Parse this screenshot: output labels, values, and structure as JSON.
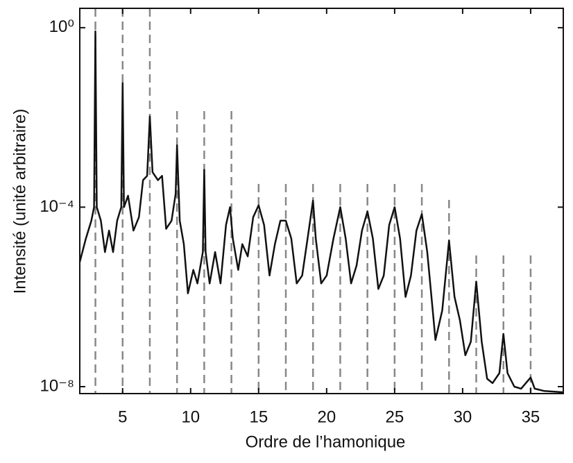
{
  "chart_data": {
    "type": "line",
    "xlabel": "Ordre de l’hamonique",
    "ylabel": "Intensité (unité arbitraire)",
    "yscale": "log",
    "xlim": [
      1.85,
      37.4
    ],
    "ylim": [
      7e-09,
      2.7
    ],
    "xticks": [
      5,
      10,
      15,
      20,
      25,
      30,
      35
    ],
    "yticks": [
      {
        "value": 1,
        "label": "10⁰"
      },
      {
        "value": 0.0001,
        "label": "10⁻⁴"
      },
      {
        "value": 1e-08,
        "label": "10⁻⁸"
      }
    ],
    "harmonic_lines": [
      3,
      5,
      7,
      9,
      11,
      13,
      15,
      17,
      19,
      21,
      23,
      25,
      27,
      29,
      31,
      33,
      35
    ],
    "harmonic_line_color": "#888888",
    "x": [
      1.85,
      2.3,
      2.7,
      2.9,
      3.0,
      3.1,
      3.4,
      3.7,
      4.0,
      4.3,
      4.6,
      4.9,
      5.0,
      5.1,
      5.4,
      5.8,
      6.2,
      6.5,
      6.8,
      7.0,
      7.2,
      7.6,
      7.9,
      8.2,
      8.6,
      8.9,
      9.0,
      9.2,
      9.5,
      9.8,
      10.2,
      10.5,
      10.9,
      11.0,
      11.1,
      11.4,
      11.8,
      12.2,
      12.6,
      12.9,
      13.1,
      13.5,
      13.8,
      14.2,
      14.6,
      15.0,
      15.4,
      15.8,
      16.2,
      16.6,
      17.0,
      17.4,
      17.8,
      18.2,
      18.6,
      19.0,
      19.2,
      19.6,
      20.0,
      20.5,
      21.0,
      21.4,
      21.8,
      22.2,
      22.6,
      23.0,
      23.4,
      23.8,
      24.2,
      24.6,
      25.0,
      25.4,
      25.8,
      26.2,
      26.6,
      27.0,
      27.4,
      27.8,
      28.0,
      28.5,
      29.0,
      29.4,
      29.8,
      30.2,
      30.6,
      31.0,
      31.4,
      31.8,
      32.2,
      32.7,
      33.0,
      33.3,
      33.8,
      34.3,
      35.0,
      35.3,
      36.0,
      37.4
    ],
    "series": [
      {
        "color": "#111111",
        "values": [
          6e-06,
          2e-05,
          5e-05,
          0.0001,
          0.83,
          0.0001,
          5e-05,
          1e-05,
          3e-05,
          1e-05,
          5e-05,
          0.0001,
          0.058,
          0.0001,
          0.00018,
          3e-05,
          6e-05,
          0.0004,
          0.0005,
          0.0105,
          0.0006,
          0.0004,
          0.0005,
          3.3e-05,
          5e-05,
          0.0002,
          0.0024,
          5e-05,
          1.5e-05,
          1.2e-06,
          4e-06,
          2e-06,
          1e-05,
          0.00068,
          1e-05,
          2e-06,
          1e-05,
          2e-06,
          4e-05,
          0.0001,
          2e-05,
          4e-06,
          1.5e-05,
          8e-06,
          6e-05,
          0.00011,
          4e-05,
          3e-06,
          1.5e-05,
          5e-05,
          5e-05,
          2e-05,
          2e-06,
          3e-06,
          2e-05,
          0.00014,
          2e-05,
          2e-06,
          3e-06,
          2e-05,
          0.0001,
          2e-05,
          2e-06,
          5e-06,
          3e-05,
          8e-05,
          2e-05,
          1.5e-06,
          3e-06,
          4e-05,
          0.0001,
          2e-05,
          1e-06,
          3e-06,
          3e-05,
          7e-05,
          1e-05,
          5e-07,
          1.1e-07,
          5e-07,
          1.8e-05,
          1e-06,
          3e-07,
          5e-08,
          1e-07,
          2.2e-06,
          1e-07,
          1.5e-08,
          1.2e-08,
          2e-08,
          1.5e-07,
          2e-08,
          1e-08,
          9e-09,
          1.6e-08,
          9e-09,
          8e-09,
          7.5e-09
        ]
      }
    ]
  }
}
